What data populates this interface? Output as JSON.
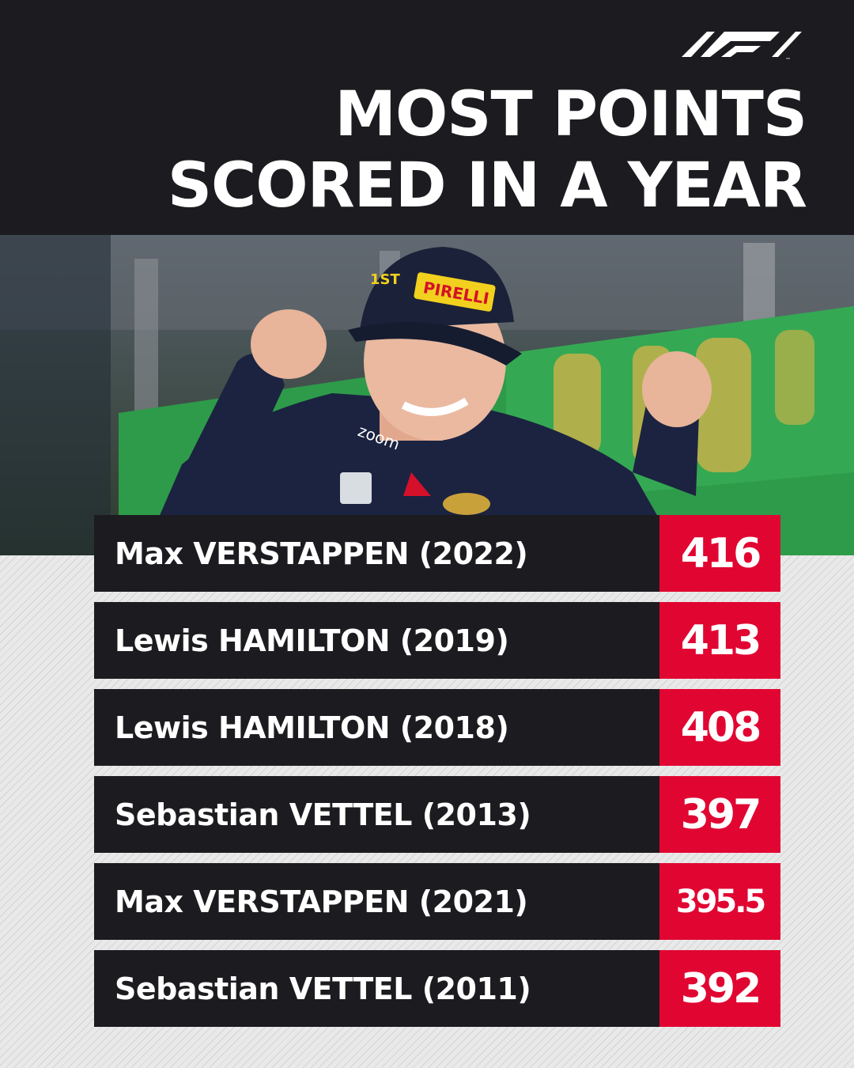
{
  "brand": {
    "logo": "f1-logo-icon"
  },
  "title": {
    "line1": "MOST POINTS",
    "line2": "SCORED IN A YEAR"
  },
  "photo": {
    "subject": "driver-celebrating-photo"
  },
  "rows": [
    {
      "name": "Max VERSTAPPEN (2022)",
      "points": "416"
    },
    {
      "name": "Lewis HAMILTON (2019)",
      "points": "413"
    },
    {
      "name": "Lewis HAMILTON (2018)",
      "points": "408"
    },
    {
      "name": "Sebastian VETTEL (2013)",
      "points": "397"
    },
    {
      "name": "Max VERSTAPPEN (2021)",
      "points": "395.5"
    },
    {
      "name": "Sebastian VETTEL (2011)",
      "points": "392"
    }
  ],
  "colors": {
    "dark": "#1c1c20",
    "accent": "#e10632",
    "text": "#ffffff"
  }
}
